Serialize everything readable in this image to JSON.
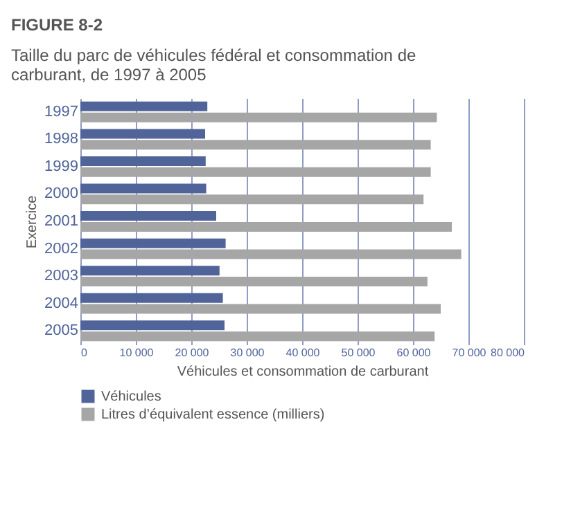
{
  "chart_data": {
    "type": "bar",
    "orientation": "horizontal",
    "title": "FIGURE 8-2",
    "subtitle": "Taille du parc de véhicules fédéral et consommation de carburant, de 1997 à 2005",
    "xlabel": "Véhicules et consommation de carburant",
    "ylabel": "Exercice",
    "categories": [
      "1997",
      "1998",
      "1999",
      "2000",
      "2001",
      "2002",
      "2003",
      "2004",
      "2005"
    ],
    "series": [
      {
        "name": "Véhicules",
        "color": "#50649a",
        "values": [
          22900,
          22500,
          22600,
          22700,
          24500,
          26200,
          25100,
          25700,
          26000
        ]
      },
      {
        "name": "Litres d’équivalent essence (milliers)",
        "color": "#a6a6a6",
        "values": [
          64300,
          63200,
          63200,
          61900,
          67000,
          68700,
          62600,
          65000,
          63900
        ]
      }
    ],
    "xlim": [
      0,
      80000
    ],
    "xticks": [
      0,
      {
        "value": 10000,
        "label": "10 000"
      },
      {
        "value": 20000,
        "label": "20 000"
      },
      {
        "value": 30000,
        "label": "30 000"
      },
      {
        "value": 40000,
        "label": "40 000"
      },
      {
        "value": 50000,
        "label": "50 000"
      },
      {
        "value": 60000,
        "label": "60 000"
      },
      {
        "value": 70000,
        "label": "70 000"
      },
      {
        "value": 80000,
        "label": "80 000"
      }
    ],
    "grid": "x",
    "legend": "bottom"
  }
}
